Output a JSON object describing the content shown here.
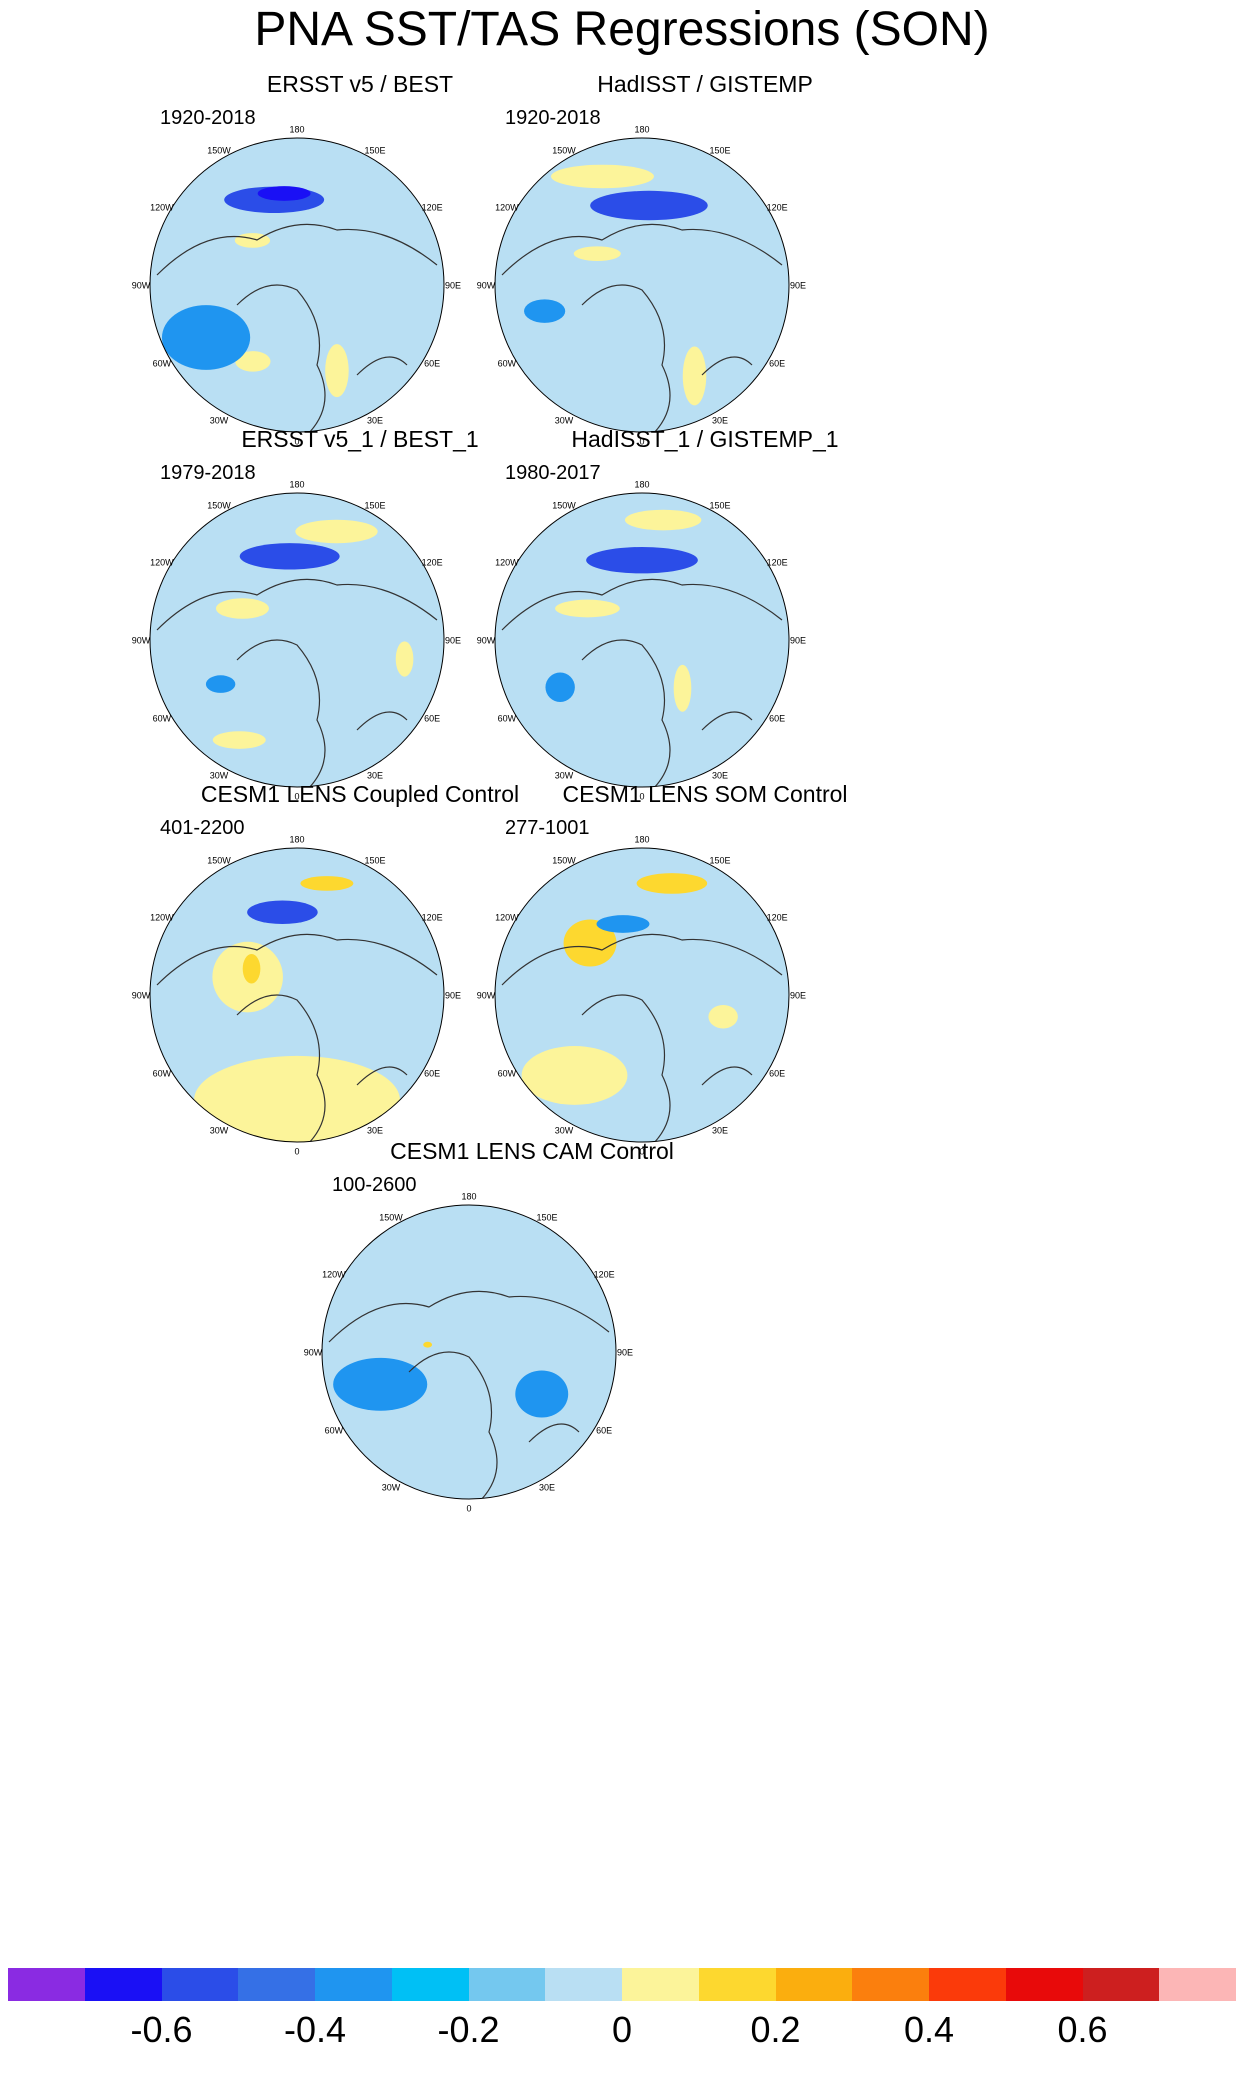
{
  "title": "PNA SST/TAS Regressions (SON)",
  "panels": [
    {
      "title": "ERSST v5 / BEST",
      "period": "1920-2018",
      "features": [
        {
          "level": -0.5,
          "lon": 195,
          "colat": 42,
          "rx": 0.34,
          "ry": 0.09
        },
        {
          "level": -0.6,
          "lon": 188,
          "colat": 44,
          "rx": 0.18,
          "ry": 0.05
        },
        {
          "level": 0.1,
          "lon": 225,
          "colat": 30,
          "rx": 0.12,
          "ry": 0.05
        },
        {
          "level": 0.1,
          "lon": 330,
          "colat": 42,
          "rx": 0.12,
          "ry": 0.07
        },
        {
          "level": -0.3,
          "lon": 300,
          "colat": 50,
          "rx": 0.3,
          "ry": 0.22
        },
        {
          "level": 0.1,
          "lon": 25,
          "colat": 45,
          "rx": 0.08,
          "ry": 0.18
        }
      ]
    },
    {
      "title": "HadISST / GISTEMP",
      "period": "1920-2018",
      "features": [
        {
          "level": -0.5,
          "lon": 175,
          "colat": 38,
          "rx": 0.4,
          "ry": 0.1
        },
        {
          "level": 0.1,
          "lon": 200,
          "colat": 55,
          "rx": 0.35,
          "ry": 0.08
        },
        {
          "level": 0.1,
          "lon": 235,
          "colat": 26,
          "rx": 0.16,
          "ry": 0.05
        },
        {
          "level": -0.3,
          "lon": 285,
          "colat": 48,
          "rx": 0.14,
          "ry": 0.08
        },
        {
          "level": 0.1,
          "lon": 30,
          "colat": 50,
          "rx": 0.08,
          "ry": 0.2
        }
      ]
    },
    {
      "title": "ERSST v5_1 / BEST_1",
      "period": "1979-2018",
      "features": [
        {
          "level": -0.5,
          "lon": 185,
          "colat": 40,
          "rx": 0.34,
          "ry": 0.09
        },
        {
          "level": 0.1,
          "lon": 160,
          "colat": 55,
          "rx": 0.28,
          "ry": 0.08
        },
        {
          "level": 0.1,
          "lon": 240,
          "colat": 30,
          "rx": 0.18,
          "ry": 0.07
        },
        {
          "level": -0.3,
          "lon": 300,
          "colat": 42,
          "rx": 0.1,
          "ry": 0.06
        },
        {
          "level": 0.1,
          "lon": 330,
          "colat": 55,
          "rx": 0.18,
          "ry": 0.06
        },
        {
          "level": 0.1,
          "lon": 80,
          "colat": 52,
          "rx": 0.06,
          "ry": 0.12
        }
      ]
    },
    {
      "title": "HadISST_1 / GISTEMP_1",
      "period": "1980-2017",
      "features": [
        {
          "level": -0.5,
          "lon": 180,
          "colat": 38,
          "rx": 0.38,
          "ry": 0.09
        },
        {
          "level": 0.1,
          "lon": 170,
          "colat": 58,
          "rx": 0.26,
          "ry": 0.07
        },
        {
          "level": 0.1,
          "lon": 240,
          "colat": 30,
          "rx": 0.22,
          "ry": 0.06
        },
        {
          "level": 0.1,
          "lon": 40,
          "colat": 30,
          "rx": 0.06,
          "ry": 0.16
        },
        {
          "level": -0.3,
          "lon": 300,
          "colat": 45,
          "rx": 0.1,
          "ry": 0.1
        }
      ]
    },
    {
      "title": "CESM1 LENS Coupled Control",
      "period": "401-2200",
      "features": [
        {
          "level": 0.1,
          "lon": 0,
          "colat": 50,
          "rx": 0.7,
          "ry": 0.3
        },
        {
          "level": 0.1,
          "lon": 250,
          "colat": 25,
          "rx": 0.24,
          "ry": 0.24
        },
        {
          "level": -0.5,
          "lon": 190,
          "colat": 40,
          "rx": 0.24,
          "ry": 0.08
        },
        {
          "level": 0.2,
          "lon": 165,
          "colat": 55,
          "rx": 0.18,
          "ry": 0.05
        },
        {
          "level": 0.2,
          "lon": 240,
          "colat": 25,
          "rx": 0.06,
          "ry": 0.1
        }
      ]
    },
    {
      "title": "CESM1 LENS SOM Control",
      "period": "277-1001",
      "features": [
        {
          "level": 0.1,
          "lon": 320,
          "colat": 50,
          "rx": 0.36,
          "ry": 0.2
        },
        {
          "level": 0.2,
          "lon": 225,
          "colat": 35,
          "rx": 0.18,
          "ry": 0.16
        },
        {
          "level": 0.2,
          "lon": 165,
          "colat": 55,
          "rx": 0.24,
          "ry": 0.07
        },
        {
          "level": -0.3,
          "lon": 195,
          "colat": 35,
          "rx": 0.18,
          "ry": 0.06
        },
        {
          "level": 0.1,
          "lon": 75,
          "colat": 40,
          "rx": 0.1,
          "ry": 0.08
        }
      ]
    },
    {
      "title": "CESM1 LENS CAM Control",
      "period": "100-2600",
      "features": [
        {
          "level": -0.3,
          "lon": 290,
          "colat": 45,
          "rx": 0.32,
          "ry": 0.18
        },
        {
          "level": -0.3,
          "lon": 60,
          "colat": 40,
          "rx": 0.18,
          "ry": 0.16
        },
        {
          "level": 0.2,
          "lon": 260,
          "colat": 20,
          "rx": 0.03,
          "ry": 0.02
        }
      ]
    }
  ],
  "map_labels": {
    "lon_180": "180",
    "lon_150w": "150W",
    "lon_150e": "150E",
    "lon_120w": "120W",
    "lon_120e": "120E",
    "lon_90w": "90W",
    "lon_90e": "90E",
    "lon_60w": "60W",
    "lon_60e": "60E",
    "lon_30w": "30W",
    "lon_30e": "30E",
    "lon_0": "0"
  },
  "colorbar": {
    "colors": [
      "#8a2be2",
      "#1a10f5",
      "#2b4de8",
      "#3570e6",
      "#1f95f0",
      "#00c0f5",
      "#74c8ef",
      "#b9dff3",
      "#fcf49a",
      "#fdd82f",
      "#fbae0e",
      "#fb7f0d",
      "#fb3a0a",
      "#e80a0a",
      "#cd1f1f",
      "#fcb6b6"
    ],
    "levels": [
      -0.7,
      -0.6,
      -0.5,
      -0.4,
      -0.3,
      -0.2,
      -0.1,
      0,
      0.1,
      0.2,
      0.3,
      0.4,
      0.5,
      0.6,
      0.7
    ],
    "tick_labels": [
      "-0.6",
      "-0.4",
      "-0.2",
      "0",
      "0.2",
      "0.4",
      "0.6"
    ]
  }
}
